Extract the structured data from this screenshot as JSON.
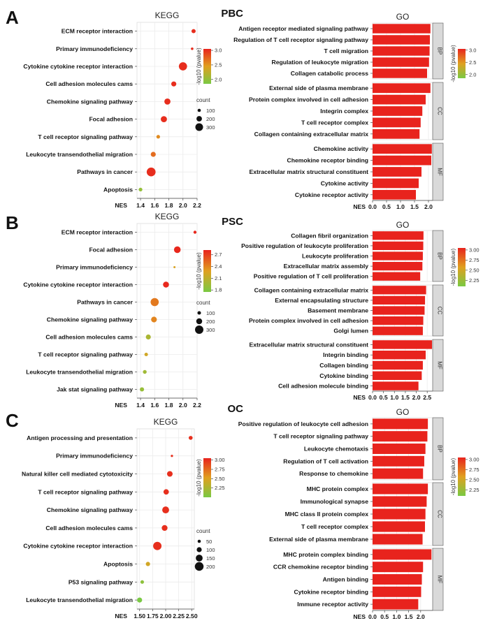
{
  "colors": {
    "low": "#7ac943",
    "mid": "#e0a020",
    "high": "#e8231d",
    "bar": "#e8231d",
    "strip": "#d9d9d9",
    "grid": "#ebebeb"
  },
  "chart_data": [
    {
      "panel": "A",
      "title": "KEGG",
      "type": "scatter",
      "xlabel": "NES",
      "xlim": [
        1.35,
        2.2
      ],
      "xticks": [
        1.4,
        1.6,
        1.8,
        2.0,
        2.2
      ],
      "categories": [
        "ECM receptor interaction",
        "Primary immunodeficiency",
        "Cytokine cytokine receptor interaction",
        "Cell adhesion molecules cams",
        "Chemokine signaling pathway",
        "Focal adhesion",
        "T cell receptor signaling pathway",
        "Leukocyte transendothelial migration",
        "Pathways in cancer",
        "Apoptosis"
      ],
      "nes": [
        2.15,
        2.13,
        2.0,
        1.87,
        1.78,
        1.73,
        1.65,
        1.58,
        1.55,
        1.4
      ],
      "count": [
        140,
        70,
        320,
        180,
        230,
        230,
        120,
        180,
        350,
        120
      ],
      "log10p": [
        3.0,
        3.0,
        3.0,
        3.0,
        3.0,
        3.0,
        2.55,
        2.7,
        3.0,
        2.0
      ],
      "color_title": "-log10 (pvalue)",
      "color_ticks": [
        2.0,
        2.5,
        3.0
      ],
      "color_range": [
        1.85,
        3.05
      ],
      "size_title": "count",
      "size_ticks": [
        100,
        200,
        300
      ],
      "size_range": [
        50,
        360
      ]
    },
    {
      "panel": "A",
      "title": "GO",
      "group_title": "PBC",
      "type": "bar",
      "xlabel": "NES",
      "xlim": [
        0,
        2.15
      ],
      "xticks": [
        0.0,
        0.5,
        1.0,
        1.5,
        2.0
      ],
      "groups": [
        {
          "name": "BP",
          "labels": [
            "Antigen receptor mediated signaling pathway",
            "Regulation of T cell receptor signaling pathway",
            "T cell migration",
            "Regulation of leukocyte migration",
            "Collagen catabolic process"
          ],
          "values": [
            2.07,
            2.05,
            2.04,
            2.02,
            1.95
          ]
        },
        {
          "name": "CC",
          "labels": [
            "External side of plasma membrane",
            "Protein complex involved in cell adhesion",
            "Integrin complex",
            "T cell receptor complex",
            "Collagen containing extracellular matrix"
          ],
          "values": [
            2.07,
            1.9,
            1.78,
            1.72,
            1.68
          ]
        },
        {
          "name": "MF",
          "labels": [
            "Chemokine activity",
            "Chemokine receptor binding",
            "Extracellular matrix structural constituent",
            "Cytokine activity",
            "Cytokine receptor activity"
          ],
          "values": [
            2.12,
            2.1,
            1.75,
            1.65,
            1.55
          ]
        }
      ],
      "color_title": "-log10 (pvalue)",
      "color_ticks": [
        2.0,
        2.5,
        3.0
      ],
      "color_range": [
        1.85,
        3.05
      ]
    },
    {
      "panel": "B",
      "title": "KEGG",
      "type": "scatter",
      "xlabel": "NES",
      "xlim": [
        1.35,
        2.2
      ],
      "xticks": [
        1.4,
        1.6,
        1.8,
        2.0,
        2.2
      ],
      "categories": [
        "ECM receptor interaction",
        "Focal adhesion",
        "Primary immunodeficiency",
        "Cytokine cytokine receptor interaction",
        "Pathways in cancer",
        "Chemokine signaling pathway",
        "Cell adhesion molecules cams",
        "T cell receptor signaling pathway",
        "Leukocyte transendothelial migration",
        "Jak stat signaling pathway"
      ],
      "nes": [
        2.17,
        1.92,
        1.88,
        1.76,
        1.6,
        1.59,
        1.51,
        1.48,
        1.46,
        1.42
      ],
      "count": [
        80,
        230,
        40,
        200,
        290,
        190,
        160,
        100,
        110,
        130
      ],
      "log10p": [
        2.8,
        2.8,
        2.25,
        2.8,
        2.45,
        2.4,
        2.0,
        2.2,
        1.95,
        1.9
      ],
      "color_title": "-log10 (pvalue)",
      "color_ticks": [
        1.8,
        2.1,
        2.4,
        2.7
      ],
      "color_range": [
        1.75,
        2.82
      ],
      "size_title": "count",
      "size_ticks": [
        100,
        200,
        300
      ],
      "size_range": [
        40,
        330
      ]
    },
    {
      "panel": "B",
      "title": "GO",
      "group_title": "PSC",
      "type": "bar",
      "xlabel": "NES",
      "xlim": [
        0,
        2.75
      ],
      "xticks": [
        0.0,
        0.5,
        1.0,
        1.5,
        2.0,
        2.5
      ],
      "groups": [
        {
          "name": "BP",
          "labels": [
            "Collagen fibril organization",
            "Positive regulation of leukocyte proliferation",
            "Leukocyte proliferation",
            "Extracellular matrix assembly",
            "Positive regulation of T cell proliferation"
          ],
          "values": [
            2.33,
            2.32,
            2.3,
            2.28,
            2.18
          ]
        },
        {
          "name": "CC",
          "labels": [
            "Collagen containing extracellular matrix",
            "External encapsulating structure",
            "Basement membrane",
            "Protein complex involved in cell adhesion",
            "Golgi lumen"
          ],
          "values": [
            2.45,
            2.4,
            2.38,
            2.32,
            2.3
          ]
        },
        {
          "name": "MF",
          "labels": [
            "Extracellular matrix structural constituent",
            "Integrin binding",
            "Collagen binding",
            "Cytokine binding",
            "Cell adhesion molecule binding"
          ],
          "values": [
            2.72,
            2.43,
            2.3,
            2.25,
            2.1
          ]
        }
      ],
      "color_title": "-log10 (pvalue)",
      "color_ticks": [
        2.25,
        2.5,
        2.75,
        3.0
      ],
      "color_range": [
        2.1,
        3.05
      ]
    },
    {
      "panel": "C",
      "title": "KEGG",
      "type": "scatter",
      "xlabel": "NES",
      "xlim": [
        1.45,
        2.55
      ],
      "xticks": [
        1.5,
        1.75,
        2.0,
        2.25,
        2.5
      ],
      "categories": [
        "Antigen processing and presentation",
        "Primary immunodeficiency",
        "Natural killer cell mediated cytotoxicity",
        "T cell receptor signaling pathway",
        "Chemokine signaling pathway",
        "Cell adhesion molecules cams",
        "Cytokine cytokine receptor interaction",
        "Apoptosis",
        "P53 signaling pathway",
        "Leukocyte transendothelial migration"
      ],
      "nes": [
        2.48,
        2.12,
        2.08,
        2.01,
        2.0,
        1.98,
        1.84,
        1.66,
        1.55,
        1.5
      ],
      "count": [
        70,
        25,
        115,
        110,
        150,
        120,
        190,
        80,
        60,
        100
      ],
      "log10p": [
        3.0,
        3.0,
        3.0,
        3.0,
        3.0,
        3.0,
        3.0,
        2.45,
        2.1,
        2.0
      ],
      "color_title": "-log10 (pvalue)",
      "color_ticks": [
        2.25,
        2.5,
        2.75,
        3.0
      ],
      "color_range": [
        2.0,
        3.05
      ],
      "size_title": "count",
      "size_ticks": [
        50,
        100,
        150,
        200
      ],
      "size_range": [
        20,
        210
      ]
    },
    {
      "panel": "C",
      "title": "GO",
      "group_title": "OC",
      "type": "bar",
      "xlabel": "NES",
      "xlim": [
        0,
        2.5
      ],
      "xticks": [
        0.0,
        0.5,
        1.0,
        1.5,
        2.0
      ],
      "groups": [
        {
          "name": "BP",
          "labels": [
            "Positive regulation of leukocyte cell adhesion",
            "T cell receptor signaling pathway",
            "Leukocyte chemotaxis",
            "Regulation of T cell activation",
            "Response to chemokine"
          ],
          "values": [
            2.3,
            2.28,
            2.2,
            2.15,
            2.1
          ]
        },
        {
          "name": "CC",
          "labels": [
            "MHC protein complex",
            "Immunological synapse",
            "MHC class II protein complex",
            "T cell receptor complex",
            "External side of plasma membrane"
          ],
          "values": [
            2.3,
            2.25,
            2.2,
            2.18,
            2.08
          ]
        },
        {
          "name": "MF",
          "labels": [
            "MHC protein complex binding",
            "CCR chemokine receptor binding",
            "Antigen binding",
            "Cytokine receptor binding",
            "Immune receptor activity"
          ],
          "values": [
            2.45,
            2.1,
            2.05,
            2.02,
            1.9
          ]
        }
      ],
      "color_title": "-log10 (pvalue)",
      "color_ticks": [
        2.25,
        2.5,
        2.75,
        3.0
      ],
      "color_range": [
        2.1,
        3.05
      ]
    }
  ]
}
